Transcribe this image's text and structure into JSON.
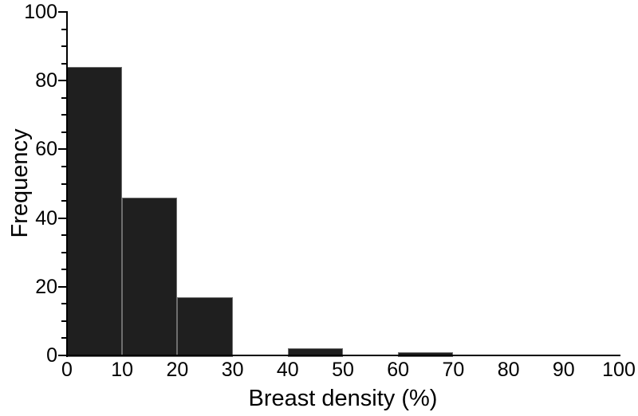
{
  "figure": {
    "background": "#ffffff"
  },
  "chart_data": {
    "type": "bar",
    "subtype": "histogram",
    "title": "",
    "xlabel": "Breast density (%)",
    "ylabel": "Frequency",
    "xlim": [
      0,
      100
    ],
    "ylim": [
      0,
      100
    ],
    "x_ticks": [
      0,
      10,
      20,
      30,
      40,
      50,
      60,
      70,
      80,
      90,
      100
    ],
    "x_tick_labels": [
      "0",
      "10",
      "20",
      "30",
      "40",
      "50",
      "60",
      "70",
      "80",
      "90",
      "100"
    ],
    "y_ticks": [
      0,
      20,
      40,
      60,
      80,
      100
    ],
    "y_tick_labels": [
      "0",
      "20",
      "40",
      "60",
      "80",
      "100"
    ],
    "y_minor_tick_step": 5,
    "grid": false,
    "legend": null,
    "bins": [
      {
        "start": 0,
        "end": 10,
        "value": 84
      },
      {
        "start": 10,
        "end": 20,
        "value": 46
      },
      {
        "start": 20,
        "end": 30,
        "value": 17
      },
      {
        "start": 30,
        "end": 40,
        "value": 0
      },
      {
        "start": 40,
        "end": 50,
        "value": 2
      },
      {
        "start": 50,
        "end": 60,
        "value": 0
      },
      {
        "start": 60,
        "end": 70,
        "value": 1
      },
      {
        "start": 70,
        "end": 80,
        "value": 0
      },
      {
        "start": 80,
        "end": 90,
        "value": 0
      },
      {
        "start": 90,
        "end": 100,
        "value": 0
      }
    ],
    "colors": {
      "bar_fill": "#1f1f1f",
      "bar_edge": "#6e6e6e",
      "axis": "#000000",
      "text": "#000000"
    }
  }
}
